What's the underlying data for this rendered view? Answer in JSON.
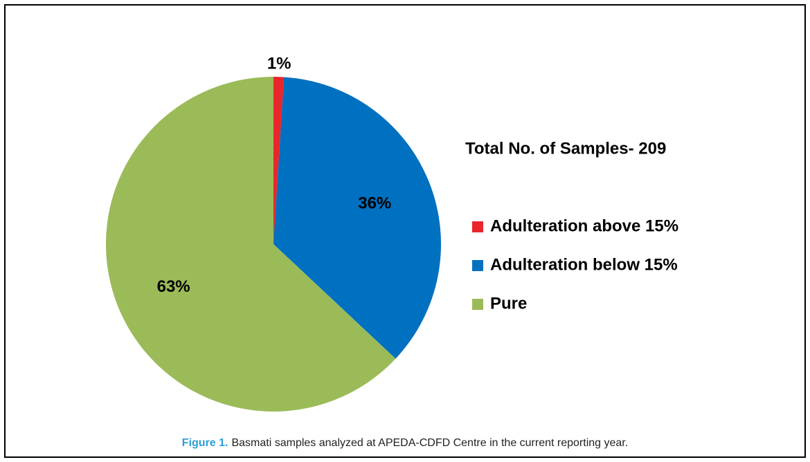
{
  "chart_data": {
    "type": "pie",
    "annotation": "Total No. of Samples- 209",
    "categories": [
      "Adulteration above 15%",
      "Adulteration below 15%",
      "Pure"
    ],
    "values": [
      1,
      36,
      63
    ],
    "value_labels": [
      "1%",
      "36%",
      "63%"
    ],
    "colors": [
      "#e8262b",
      "#0070c0",
      "#9bbb59"
    ],
    "legend": "right",
    "caption": {
      "label": "Figure 1.",
      "text": "Basmati samples analyzed at APEDA-CDFD Centre in the current reporting year."
    }
  }
}
